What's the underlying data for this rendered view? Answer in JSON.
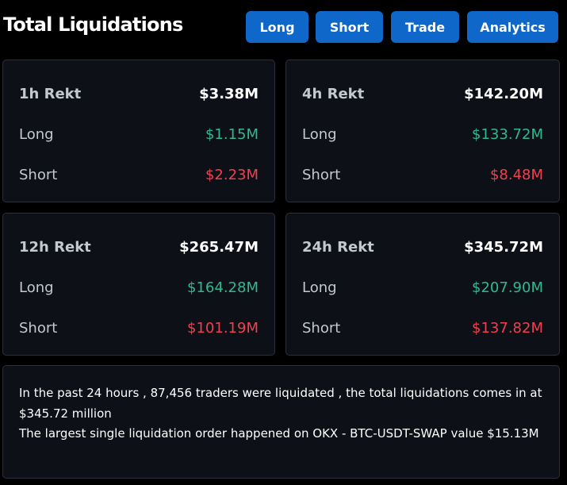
{
  "header": {
    "title": "Total Liquidations",
    "buttons": {
      "long": "Long",
      "short": "Short",
      "trade": "Trade",
      "analytics": "Analytics"
    }
  },
  "cards": [
    {
      "period_label": "1h Rekt",
      "total": "$3.38M",
      "long_label": "Long",
      "long_value": "$1.15M",
      "short_label": "Short",
      "short_value": "$2.23M"
    },
    {
      "period_label": "4h Rekt",
      "total": "$142.20M",
      "long_label": "Long",
      "long_value": "$133.72M",
      "short_label": "Short",
      "short_value": "$8.48M"
    },
    {
      "period_label": "12h Rekt",
      "total": "$265.47M",
      "long_label": "Long",
      "long_value": "$164.28M",
      "short_label": "Short",
      "short_value": "$101.19M"
    },
    {
      "period_label": "24h Rekt",
      "total": "$345.72M",
      "long_label": "Long",
      "long_value": "$207.90M",
      "short_label": "Short",
      "short_value": "$137.82M"
    }
  ],
  "summary": {
    "line1": "In the past 24 hours , 87,456 traders were liquidated , the total liquidations comes in at $345.72 million",
    "line2": "The largest single liquidation order happened on OKX - BTC-USDT-SWAP value $15.13M"
  },
  "colors": {
    "accent_button": "#0f67c9",
    "long_green": "#2fb98f",
    "short_red": "#f0404f",
    "card_bg": "#0d1017",
    "page_bg": "#000000"
  }
}
